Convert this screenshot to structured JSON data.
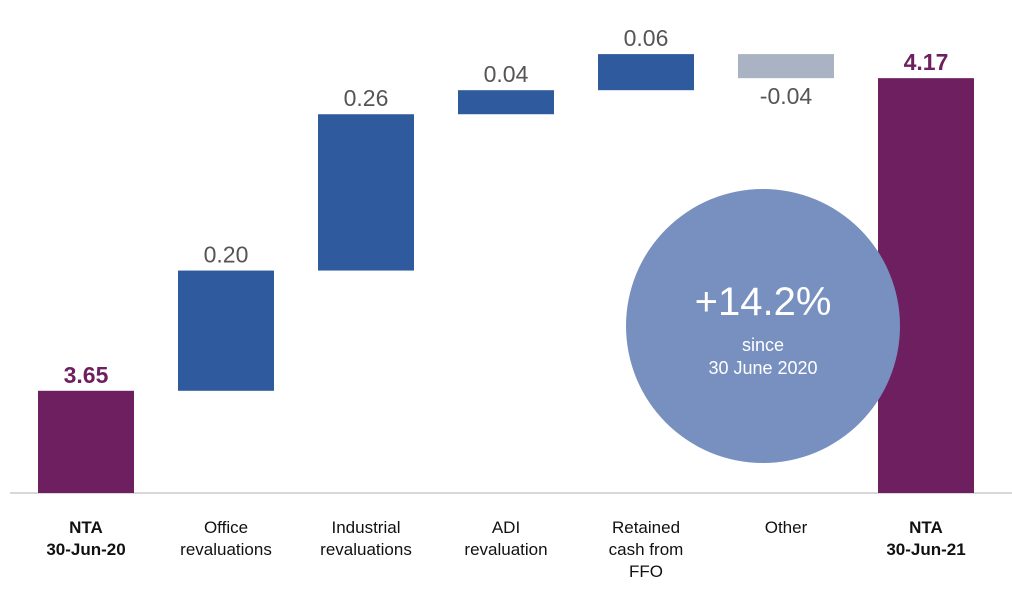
{
  "chart_data": {
    "type": "waterfall",
    "categories": [
      "NTA\n30-Jun-20",
      "Office\nrevaluations",
      "Industrial\nrevaluations",
      "ADI\nrevaluation",
      "Retained\ncash from\nFFO",
      "Other",
      "NTA\n30-Jun-21"
    ],
    "values": [
      3.65,
      0.2,
      0.26,
      0.04,
      0.06,
      -0.04,
      4.17
    ],
    "value_labels": [
      "3.65",
      "0.20",
      "0.26",
      "0.04",
      "0.06",
      "-0.04",
      "4.17"
    ],
    "measure": [
      "total",
      "relative",
      "relative",
      "relative",
      "relative",
      "relative",
      "total"
    ],
    "colors": {
      "total": "#6e1f5f",
      "increase": "#2f5b9e",
      "decrease": "#a9b3c3"
    },
    "ylim": [
      3.48,
      4.3
    ],
    "annotation": [
      "+14.2%",
      "since",
      "30 June 2020"
    ],
    "annotation_color": "#7790bf"
  }
}
